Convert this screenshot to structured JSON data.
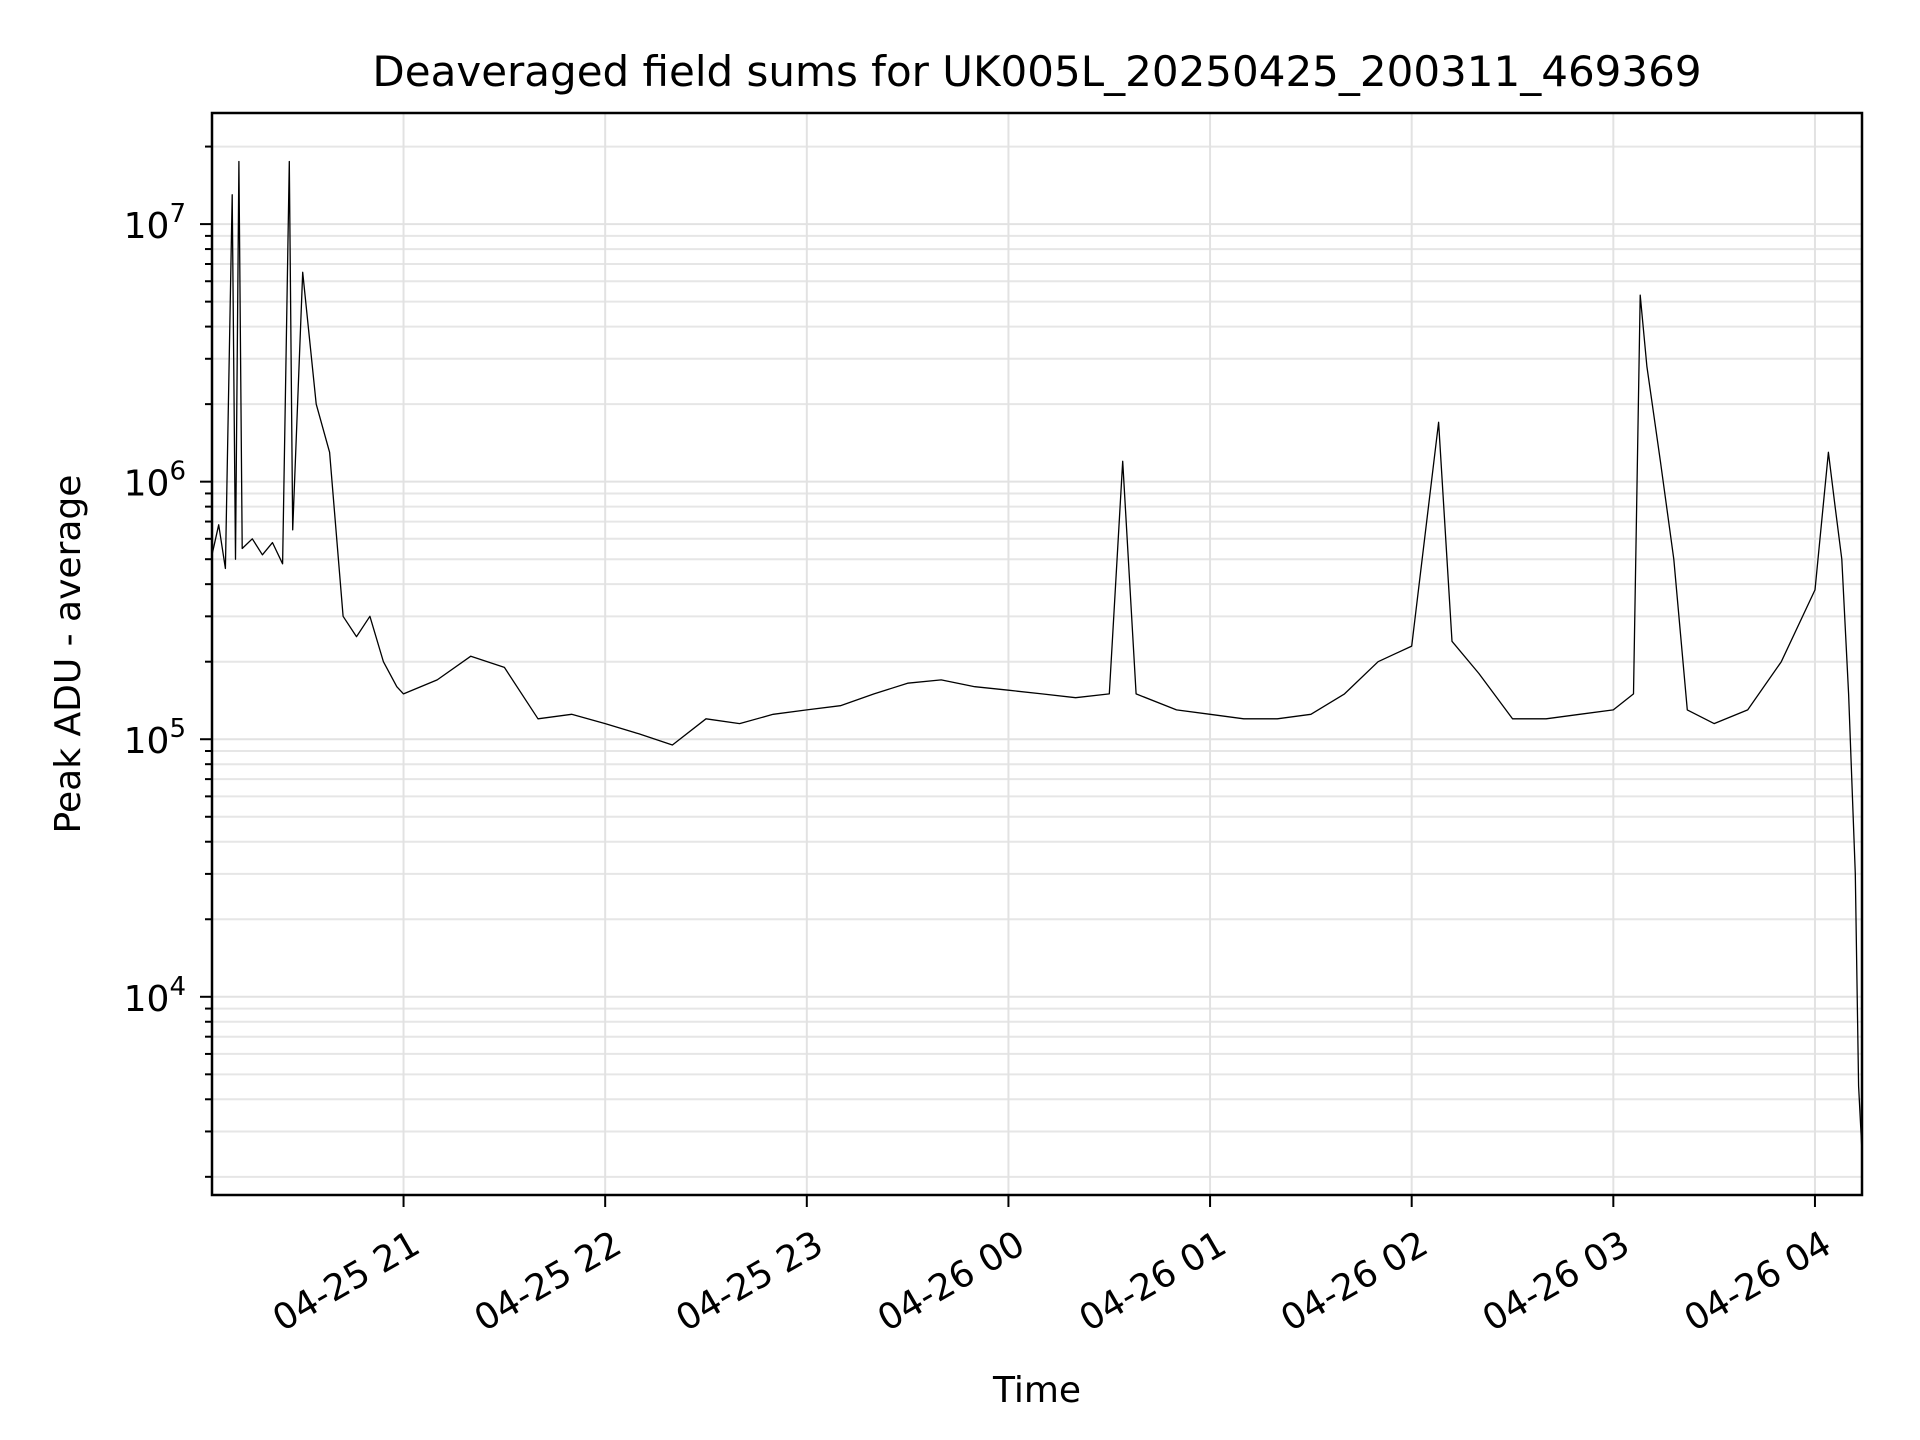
{
  "chart_data": {
    "type": "line",
    "title": "Deaveraged field sums for UK005L_20250425_200311_469369",
    "xlabel": "Time",
    "ylabel": "Peak ADU - average",
    "yscale": "log",
    "xlim": [
      "2025-04-25 20:03",
      "2025-04-26 04:14"
    ],
    "ylim": [
      1700,
      27000000
    ],
    "grid": true,
    "x_ticks": [
      {
        "t": "2025-04-25 21:00",
        "label": "04-25 21"
      },
      {
        "t": "2025-04-25 22:00",
        "label": "04-25 22"
      },
      {
        "t": "2025-04-25 23:00",
        "label": "04-25 23"
      },
      {
        "t": "2025-04-26 00:00",
        "label": "04-26 00"
      },
      {
        "t": "2025-04-26 01:00",
        "label": "04-26 01"
      },
      {
        "t": "2025-04-26 02:00",
        "label": "04-26 02"
      },
      {
        "t": "2025-04-26 03:00",
        "label": "04-26 03"
      },
      {
        "t": "2025-04-26 04:00",
        "label": "04-26 04"
      }
    ],
    "y_ticks": [
      {
        "value": 10000,
        "base": "10",
        "exp": "4"
      },
      {
        "value": 100000,
        "base": "10",
        "exp": "5"
      },
      {
        "value": 1000000,
        "base": "10",
        "exp": "6"
      },
      {
        "value": 10000000,
        "base": "10",
        "exp": "7"
      }
    ],
    "series": [
      {
        "color": "#000000",
        "points": [
          [
            "2025-04-25 20:03",
            520000
          ],
          [
            "2025-04-25 20:05",
            680000
          ],
          [
            "2025-04-25 20:07",
            460000
          ],
          [
            "2025-04-25 20:09",
            13000000
          ],
          [
            "2025-04-25 20:10",
            500000
          ],
          [
            "2025-04-25 20:11",
            17500000
          ],
          [
            "2025-04-25 20:12",
            550000
          ],
          [
            "2025-04-25 20:15",
            600000
          ],
          [
            "2025-04-25 20:18",
            520000
          ],
          [
            "2025-04-25 20:21",
            580000
          ],
          [
            "2025-04-25 20:24",
            480000
          ],
          [
            "2025-04-25 20:26",
            17500000
          ],
          [
            "2025-04-25 20:27",
            650000
          ],
          [
            "2025-04-25 20:30",
            6500000
          ],
          [
            "2025-04-25 20:34",
            2000000
          ],
          [
            "2025-04-25 20:38",
            1300000
          ],
          [
            "2025-04-25 20:42",
            300000
          ],
          [
            "2025-04-25 20:46",
            250000
          ],
          [
            "2025-04-25 20:50",
            300000
          ],
          [
            "2025-04-25 20:54",
            200000
          ],
          [
            "2025-04-25 20:58",
            160000
          ],
          [
            "2025-04-25 21:00",
            150000
          ],
          [
            "2025-04-25 21:10",
            170000
          ],
          [
            "2025-04-25 21:20",
            210000
          ],
          [
            "2025-04-25 21:30",
            190000
          ],
          [
            "2025-04-25 21:40",
            120000
          ],
          [
            "2025-04-25 21:50",
            125000
          ],
          [
            "2025-04-25 22:00",
            115000
          ],
          [
            "2025-04-25 22:10",
            105000
          ],
          [
            "2025-04-25 22:20",
            95000
          ],
          [
            "2025-04-25 22:30",
            120000
          ],
          [
            "2025-04-25 22:40",
            115000
          ],
          [
            "2025-04-25 22:50",
            125000
          ],
          [
            "2025-04-25 23:00",
            130000
          ],
          [
            "2025-04-25 23:10",
            135000
          ],
          [
            "2025-04-25 23:20",
            150000
          ],
          [
            "2025-04-25 23:30",
            165000
          ],
          [
            "2025-04-25 23:40",
            170000
          ],
          [
            "2025-04-25 23:50",
            160000
          ],
          [
            "2025-04-26 00:00",
            155000
          ],
          [
            "2025-04-26 00:10",
            150000
          ],
          [
            "2025-04-26 00:20",
            145000
          ],
          [
            "2025-04-26 00:30",
            150000
          ],
          [
            "2025-04-26 00:34",
            1200000
          ],
          [
            "2025-04-26 00:38",
            150000
          ],
          [
            "2025-04-26 00:50",
            130000
          ],
          [
            "2025-04-26 01:00",
            125000
          ],
          [
            "2025-04-26 01:10",
            120000
          ],
          [
            "2025-04-26 01:20",
            120000
          ],
          [
            "2025-04-26 01:30",
            125000
          ],
          [
            "2025-04-26 01:40",
            150000
          ],
          [
            "2025-04-26 01:50",
            200000
          ],
          [
            "2025-04-26 02:00",
            230000
          ],
          [
            "2025-04-26 02:08",
            1700000
          ],
          [
            "2025-04-26 02:12",
            240000
          ],
          [
            "2025-04-26 02:20",
            180000
          ],
          [
            "2025-04-26 02:30",
            120000
          ],
          [
            "2025-04-26 02:40",
            120000
          ],
          [
            "2025-04-26 02:50",
            125000
          ],
          [
            "2025-04-26 03:00",
            130000
          ],
          [
            "2025-04-26 03:06",
            150000
          ],
          [
            "2025-04-26 03:08",
            5300000
          ],
          [
            "2025-04-26 03:10",
            2800000
          ],
          [
            "2025-04-26 03:14",
            1200000
          ],
          [
            "2025-04-26 03:18",
            500000
          ],
          [
            "2025-04-26 03:22",
            130000
          ],
          [
            "2025-04-26 03:30",
            115000
          ],
          [
            "2025-04-26 03:40",
            130000
          ],
          [
            "2025-04-26 03:50",
            200000
          ],
          [
            "2025-04-26 04:00",
            380000
          ],
          [
            "2025-04-26 04:04",
            1300000
          ],
          [
            "2025-04-26 04:06",
            800000
          ],
          [
            "2025-04-26 04:08",
            500000
          ],
          [
            "2025-04-26 04:10",
            150000
          ],
          [
            "2025-04-26 04:12",
            30000
          ],
          [
            "2025-04-26 04:13",
            4500
          ],
          [
            "2025-04-26 04:14",
            2500
          ]
        ]
      }
    ]
  }
}
